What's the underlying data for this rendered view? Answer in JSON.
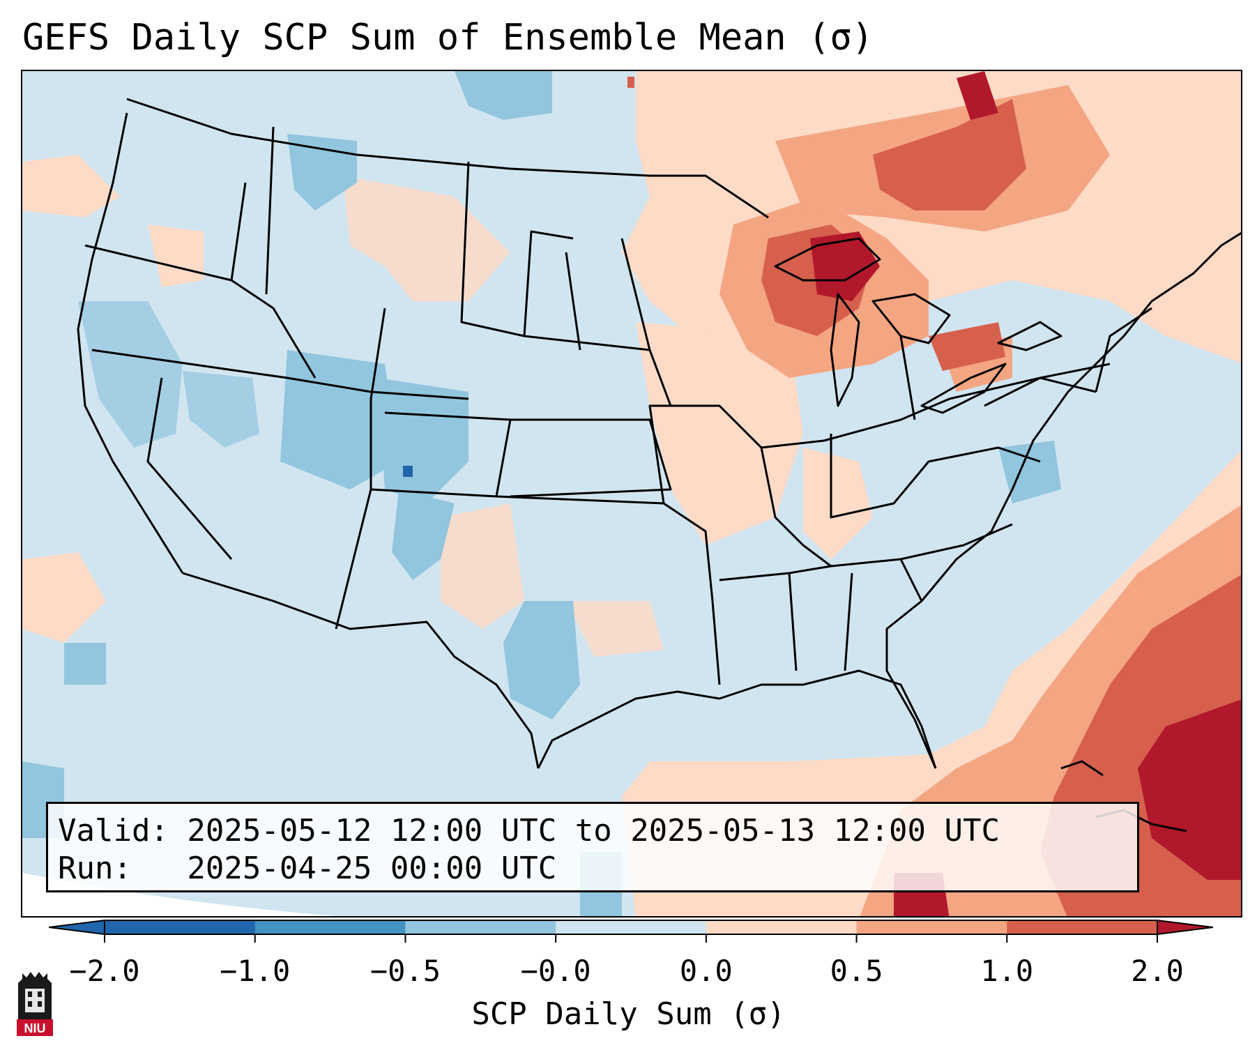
{
  "title": "GEFS Daily SCP Sum of Ensemble Mean (σ)",
  "map": {
    "region": "Contiguous United States",
    "colors": {
      "neg2": "#2166ac",
      "neg1": "#4393c3",
      "neg05": "#92c5de",
      "neutral_neg": "#d1e5f0",
      "neutral_pos": "#fddbc7",
      "pos05": "#f4a582",
      "pos1": "#d6604d",
      "pos2": "#b2182b",
      "boundary": "#000000"
    }
  },
  "info": {
    "valid_line": "Valid: 2025-05-12 12:00 UTC to 2025-05-13 12:00 UTC",
    "run_line": "Run:   2025-04-25 00:00 UTC"
  },
  "colorbar": {
    "label": "SCP Daily Sum (σ)",
    "ticks": [
      "−2.0",
      "−1.0",
      "−0.5",
      "−0.0",
      "0.0",
      "0.5",
      "1.0",
      "2.0"
    ],
    "bins": [
      "#2166ac",
      "#4393c3",
      "#92c5de",
      "#d1e5f0",
      "#fddbc7",
      "#f4a582",
      "#d6604d"
    ],
    "extend_colors": [
      "#2166ac",
      "#b2182b"
    ]
  },
  "logo": {
    "text": "NIU",
    "icon": "niu-logo-icon"
  }
}
